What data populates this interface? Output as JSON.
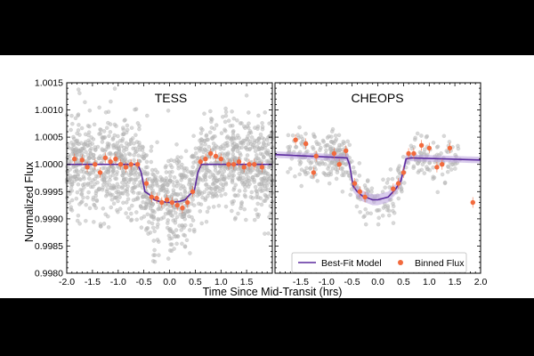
{
  "chart_data": {
    "type": "scatter",
    "shared": {
      "xlabel": "Time Since Mid-Transit (hrs)",
      "ylabel": "Normalized Flux",
      "ylim": [
        0.998,
        1.0015
      ],
      "ytick_labels": [
        "0.9980",
        "0.9985",
        "0.9990",
        "0.9995",
        "1.0000",
        "1.0005",
        "1.0010",
        "1.0015"
      ],
      "ytick_values": [
        0.998,
        0.9985,
        0.999,
        0.9995,
        1.0,
        1.0005,
        1.001,
        1.0015
      ],
      "model_color": "#5b2a9e",
      "binned_color": "#f26a3d",
      "raw_color": "#b8b8b8",
      "band_color": "#b9a2dc"
    },
    "panels": [
      {
        "title": "TESS",
        "xlim": [
          -2.0,
          2.0
        ],
        "xtick_labels": [
          "-2.0",
          "-1.5",
          "-1.0",
          "-0.5",
          "0.0",
          "0.5",
          "1.0",
          "1.5"
        ],
        "xtick_values": [
          -2.0,
          -1.5,
          -1.0,
          -0.5,
          0.0,
          0.5,
          1.0,
          1.5
        ],
        "raw_scatter": {
          "n_points": 1500,
          "depth": 0.00072,
          "sigma": 0.00045,
          "seed": 11
        },
        "model": {
          "baseline": 1.0,
          "depth": 0.00068,
          "curve": [
            [
              -2.0,
              1.0
            ],
            [
              -0.62,
              1.0
            ],
            [
              -0.55,
              0.99985
            ],
            [
              -0.48,
              0.9995
            ],
            [
              -0.4,
              0.99945
            ],
            [
              -0.3,
              0.99935
            ],
            [
              -0.2,
              0.99932
            ],
            [
              0.0,
              0.9993
            ],
            [
              0.2,
              0.99932
            ],
            [
              0.3,
              0.99935
            ],
            [
              0.4,
              0.99945
            ],
            [
              0.48,
              0.9995
            ],
            [
              0.55,
              0.99985
            ],
            [
              0.62,
              1.0
            ],
            [
              2.0,
              1.0
            ]
          ]
        },
        "binned": {
          "x": [
            -1.85,
            -1.7,
            -1.6,
            -1.45,
            -1.35,
            -1.25,
            -1.15,
            -1.05,
            -0.95,
            -0.85,
            -0.75,
            -0.62,
            -0.45,
            -0.35,
            -0.25,
            -0.15,
            -0.05,
            0.05,
            0.15,
            0.25,
            0.35,
            0.45,
            0.6,
            0.7,
            0.8,
            0.9,
            1.0,
            1.15,
            1.25,
            1.35,
            1.45,
            1.55,
            1.65,
            1.8
          ],
          "y": [
            1.0001,
            1.00008,
            0.99995,
            1.0,
            0.99985,
            1.00012,
            1.00005,
            1.0001,
            1.0,
            0.99995,
            1.0,
            1.0,
            0.99965,
            0.9994,
            0.99938,
            0.9993,
            0.99935,
            0.9993,
            0.99925,
            0.9992,
            0.9993,
            0.9995,
            1.00005,
            1.0001,
            1.0002,
            1.00015,
            1.0001,
            1.0,
            1.0,
            1.00005,
            0.99995,
            1.0,
            1.0,
            0.99995
          ]
        }
      },
      {
        "title": "CHEOPS",
        "xlim": [
          -2.0,
          2.0
        ],
        "xtick_labels": [
          "-1.5",
          "-1.0",
          "-0.5",
          "0.0",
          "0.5",
          "1.0",
          "1.5",
          "2.0"
        ],
        "xtick_values": [
          -1.5,
          -1.0,
          -0.5,
          0.0,
          0.5,
          1.0,
          1.5,
          2.0
        ],
        "raw_scatter": {
          "n_points": 420,
          "segments": [
            [
              -1.75,
              -0.95
            ],
            [
              -0.95,
              -0.55
            ],
            [
              -0.55,
              0.6
            ],
            [
              0.6,
              1.6
            ]
          ],
          "sigma": 0.00022,
          "seed": 7
        },
        "model": {
          "curve": [
            [
              -2.0,
              1.00018
            ],
            [
              -0.6,
              1.00012
            ],
            [
              -0.55,
              1.0
            ],
            [
              -0.48,
              0.9996
            ],
            [
              -0.4,
              0.9995
            ],
            [
              -0.3,
              0.99942
            ],
            [
              -0.1,
              0.99935
            ],
            [
              0.0,
              0.99935
            ],
            [
              0.2,
              0.9994
            ],
            [
              0.35,
              0.99955
            ],
            [
              0.45,
              0.9997
            ],
            [
              0.55,
              1.0001
            ],
            [
              0.65,
              1.00012
            ],
            [
              2.0,
              1.00008
            ]
          ],
          "band_halfwidth": 6e-05,
          "band_halfwidth_transit": 0.0001
        },
        "binned": {
          "x": [
            -1.6,
            -1.4,
            -1.25,
            -1.2,
            -0.85,
            -0.75,
            -0.62,
            -0.45,
            -0.35,
            -0.25,
            0.3,
            0.4,
            0.5,
            0.6,
            0.7,
            0.85,
            1.0,
            1.15,
            1.25,
            1.4,
            1.85
          ],
          "y": [
            1.00045,
            1.00038,
            0.99985,
            1.00015,
            1.0002,
            1.0,
            1.00025,
            0.99965,
            0.9995,
            0.9994,
            0.99955,
            0.99965,
            0.99985,
            1.0002,
            1.0002,
            1.00035,
            1.0003,
            0.99995,
            1.0,
            1.0003,
            0.9993
          ]
        },
        "legend": {
          "position": "bottom",
          "items": [
            {
              "label": "Best-Fit Model",
              "kind": "line"
            },
            {
              "label": "Binned Flux",
              "kind": "marker"
            }
          ]
        }
      }
    ]
  }
}
